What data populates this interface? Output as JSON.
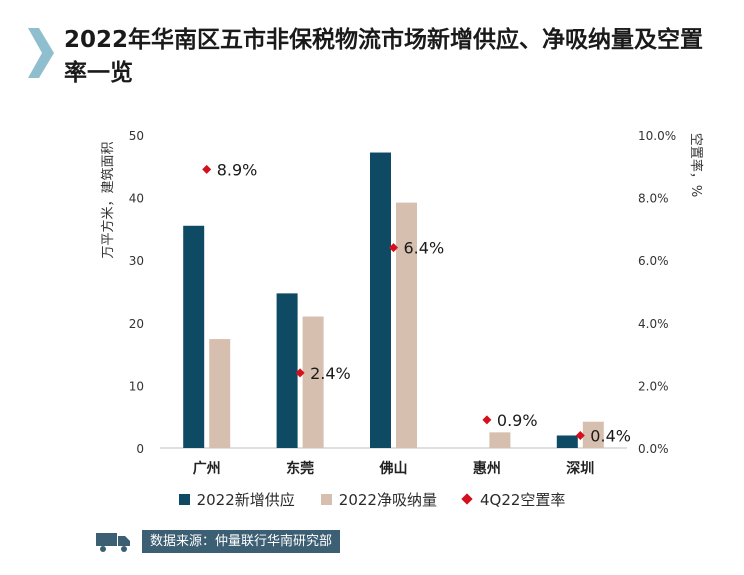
{
  "title": "2022年华南区五市非保税物流市场新增供应、净吸纳量及空置率一览",
  "colors": {
    "supply": "#0e4a63",
    "absorption": "#d6bfae",
    "vacancy": "#d4101d",
    "chevron": "#8fbfcf",
    "truck": "#3d5f73"
  },
  "legend_position": "bottom",
  "chart_data": {
    "type": "bar",
    "title": "2022年华南区五市非保税物流市场新增供应、净吸纳量及空置率一览",
    "categories": [
      "广州",
      "东莞",
      "佛山",
      "惠州",
      "深圳"
    ],
    "series": [
      {
        "name": "2022新增供应",
        "axis": "left",
        "kind": "bar",
        "values": [
          35.5,
          24.7,
          47.2,
          0,
          2.0
        ]
      },
      {
        "name": "2022净吸纳量",
        "axis": "left",
        "kind": "bar",
        "values": [
          17.4,
          21.0,
          39.2,
          2.5,
          4.2
        ]
      },
      {
        "name": "4Q22空置率",
        "axis": "right",
        "kind": "scatter",
        "values": [
          8.9,
          2.4,
          6.4,
          0.9,
          0.4
        ],
        "labels": [
          "8.9%",
          "2.4%",
          "6.4%",
          "0.9%",
          "0.4%"
        ]
      }
    ],
    "ylabel": "万平方米，建筑面积",
    "y2label": "空置率，%",
    "ylim": [
      0,
      50
    ],
    "y2lim": [
      0,
      10
    ],
    "yticks": [
      "0",
      "10",
      "20",
      "30",
      "40",
      "50"
    ],
    "y2ticks": [
      "0.0%",
      "2.0%",
      "4.0%",
      "6.0%",
      "8.0%",
      "10.0%"
    ],
    "grid": false
  },
  "source": {
    "text": "数据来源：仲量联行华南研究部"
  }
}
